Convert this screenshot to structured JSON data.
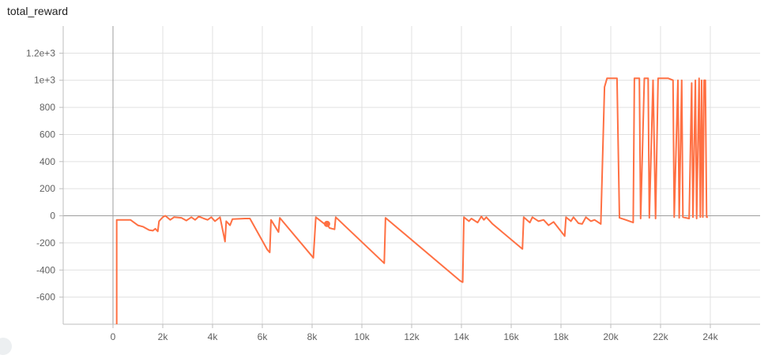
{
  "card": {
    "title": "total_reward"
  },
  "chart_data": {
    "type": "line",
    "title": "total_reward",
    "xlabel": "",
    "ylabel": "",
    "xlim": [
      -2000,
      26000
    ],
    "ylim": [
      -800,
      1400
    ],
    "x_ticks": [
      0,
      2000,
      4000,
      6000,
      8000,
      10000,
      12000,
      14000,
      16000,
      18000,
      20000,
      22000,
      24000
    ],
    "x_tick_labels": [
      "0",
      "2k",
      "4k",
      "6k",
      "8k",
      "10k",
      "12k",
      "14k",
      "16k",
      "18k",
      "20k",
      "22k",
      "24k"
    ],
    "y_ticks": [
      -600,
      -400,
      -200,
      0,
      200,
      400,
      600,
      800,
      1000,
      1200
    ],
    "y_tick_labels": [
      "-600",
      "-400",
      "-200",
      "0",
      "200",
      "400",
      "600",
      "800",
      "1e+3",
      "1.2e+3"
    ],
    "grid": true,
    "color": "#ff7043",
    "series": [
      {
        "name": "",
        "points": [
          [
            150,
            -800
          ],
          [
            150,
            -30
          ],
          [
            450,
            -30
          ],
          [
            700,
            -30
          ],
          [
            1000,
            -70
          ],
          [
            1200,
            -80
          ],
          [
            1450,
            -105
          ],
          [
            1600,
            -110
          ],
          [
            1700,
            -95
          ],
          [
            1800,
            -115
          ],
          [
            1850,
            -40
          ],
          [
            1950,
            -20
          ],
          [
            2000,
            -10
          ],
          [
            2100,
            0
          ],
          [
            2300,
            -30
          ],
          [
            2450,
            -10
          ],
          [
            2750,
            -15
          ],
          [
            2950,
            -35
          ],
          [
            3150,
            -10
          ],
          [
            3300,
            -30
          ],
          [
            3450,
            -5
          ],
          [
            3650,
            -20
          ],
          [
            3800,
            -30
          ],
          [
            3950,
            -10
          ],
          [
            4100,
            -40
          ],
          [
            4300,
            -10
          ],
          [
            4500,
            -190
          ],
          [
            4550,
            -40
          ],
          [
            4700,
            -70
          ],
          [
            4800,
            -25
          ],
          [
            5300,
            -20
          ],
          [
            5500,
            -20
          ],
          [
            6200,
            -250
          ],
          [
            6300,
            -270
          ],
          [
            6350,
            -30
          ],
          [
            6650,
            -120
          ],
          [
            6700,
            -15
          ],
          [
            8050,
            -310
          ],
          [
            8150,
            -10
          ],
          [
            8500,
            -60
          ],
          [
            8600,
            -60
          ],
          [
            8700,
            -90
          ],
          [
            8900,
            -100
          ],
          [
            8950,
            -10
          ],
          [
            10900,
            -350
          ],
          [
            10950,
            -15
          ],
          [
            13950,
            -480
          ],
          [
            14050,
            -490
          ],
          [
            14100,
            -10
          ],
          [
            14300,
            -40
          ],
          [
            14400,
            -20
          ],
          [
            14650,
            -50
          ],
          [
            14800,
            -5
          ],
          [
            14900,
            -30
          ],
          [
            15000,
            -10
          ],
          [
            15250,
            -60
          ],
          [
            16450,
            -245
          ],
          [
            16500,
            -10
          ],
          [
            16750,
            -50
          ],
          [
            16850,
            -10
          ],
          [
            17100,
            -40
          ],
          [
            17300,
            -30
          ],
          [
            17500,
            -70
          ],
          [
            17700,
            -45
          ],
          [
            18150,
            -150
          ],
          [
            18200,
            -10
          ],
          [
            18400,
            -40
          ],
          [
            18500,
            -10
          ],
          [
            18700,
            -55
          ],
          [
            18850,
            -60
          ],
          [
            19000,
            -10
          ],
          [
            19200,
            -40
          ],
          [
            19350,
            -30
          ],
          [
            19600,
            -60
          ],
          [
            19750,
            950
          ],
          [
            19850,
            1015
          ],
          [
            20250,
            1015
          ],
          [
            20350,
            -15
          ],
          [
            20600,
            -30
          ],
          [
            20900,
            -50
          ],
          [
            20950,
            1015
          ],
          [
            21150,
            1015
          ],
          [
            21200,
            -20
          ],
          [
            21350,
            1015
          ],
          [
            21500,
            1015
          ],
          [
            21550,
            -15
          ],
          [
            21700,
            1000
          ],
          [
            21800,
            -20
          ],
          [
            21900,
            1015
          ],
          [
            22300,
            1015
          ],
          [
            22500,
            1000
          ],
          [
            22550,
            -10
          ],
          [
            22700,
            1000
          ],
          [
            22750,
            -15
          ],
          [
            22850,
            1000
          ],
          [
            22900,
            -10
          ],
          [
            23150,
            -20
          ],
          [
            23250,
            980
          ],
          [
            23300,
            -10
          ],
          [
            23400,
            1000
          ],
          [
            23450,
            -20
          ],
          [
            23550,
            1015
          ],
          [
            23600,
            -10
          ],
          [
            23650,
            1000
          ],
          [
            23700,
            -10
          ],
          [
            23750,
            1000
          ],
          [
            23800,
            1000
          ],
          [
            23850,
            -10
          ],
          [
            23900,
            -10
          ]
        ],
        "highlight_point": [
          8600,
          -60
        ]
      }
    ]
  }
}
